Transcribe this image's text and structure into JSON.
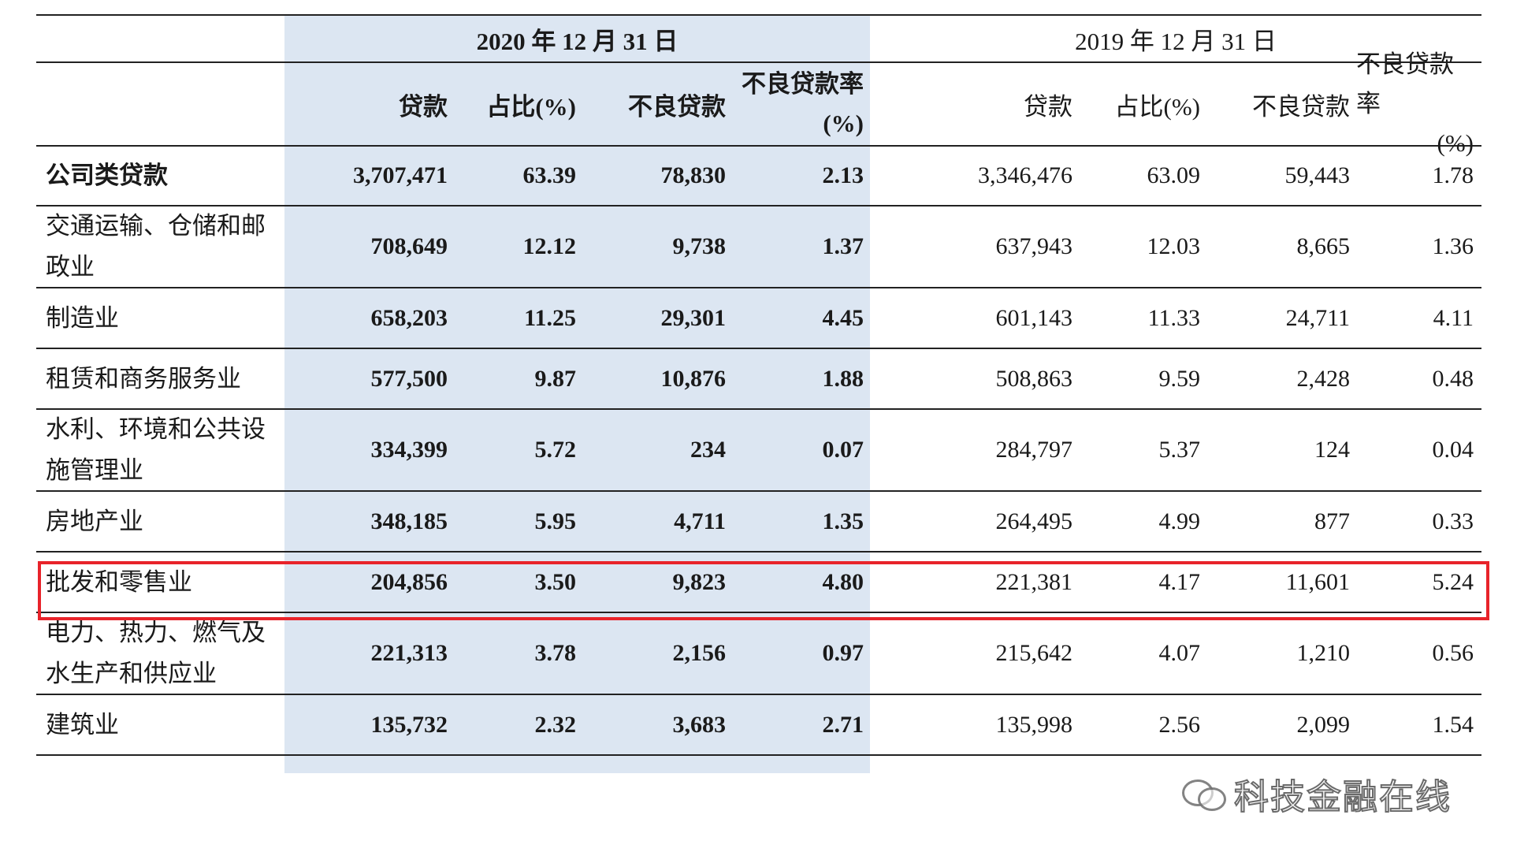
{
  "header": {
    "period_2020": "2020 年 12 月 31 日",
    "period_2019": "2019 年 12 月 31 日",
    "columns": {
      "loans": "贷款",
      "share": "占比(%)",
      "npl": "不良贷款",
      "npl_rate_line1": "不良贷款率",
      "npl_rate_line2": "(%)"
    }
  },
  "rows": [
    {
      "label": "公司类贷款",
      "v": [
        "3,707,471",
        "63.39",
        "78,830",
        "2.13",
        "3,346,476",
        "63.09",
        "59,443",
        "1.78"
      ]
    },
    {
      "label": "交通运输、仓储和邮政业",
      "v": [
        "708,649",
        "12.12",
        "9,738",
        "1.37",
        "637,943",
        "12.03",
        "8,665",
        "1.36"
      ]
    },
    {
      "label": "制造业",
      "v": [
        "658,203",
        "11.25",
        "29,301",
        "4.45",
        "601,143",
        "11.33",
        "24,711",
        "4.11"
      ]
    },
    {
      "label": "租赁和商务服务业",
      "v": [
        "577,500",
        "9.87",
        "10,876",
        "1.88",
        "508,863",
        "9.59",
        "2,428",
        "0.48"
      ]
    },
    {
      "label": "水利、环境和公共设施管理业",
      "v": [
        "334,399",
        "5.72",
        "234",
        "0.07",
        "284,797",
        "5.37",
        "124",
        "0.04"
      ]
    },
    {
      "label": "房地产业",
      "v": [
        "348,185",
        "5.95",
        "4,711",
        "1.35",
        "264,495",
        "4.99",
        "877",
        "0.33"
      ]
    },
    {
      "label": "批发和零售业",
      "v": [
        "204,856",
        "3.50",
        "9,823",
        "4.80",
        "221,381",
        "4.17",
        "11,601",
        "5.24"
      ]
    },
    {
      "label": "电力、热力、燃气及水生产和供应业",
      "v": [
        "221,313",
        "3.78",
        "2,156",
        "0.97",
        "215,642",
        "4.07",
        "1,210",
        "0.56"
      ]
    },
    {
      "label": "建筑业",
      "v": [
        "135,732",
        "2.32",
        "3,683",
        "2.71",
        "135,998",
        "2.56",
        "2,099",
        "1.54"
      ]
    }
  ],
  "highlight": {
    "color": "#e8232a",
    "row_label": "房地产业"
  },
  "shade_color": "#dce6f2",
  "watermark": {
    "text": "科技金融在线",
    "icon": "wechat-icon"
  }
}
